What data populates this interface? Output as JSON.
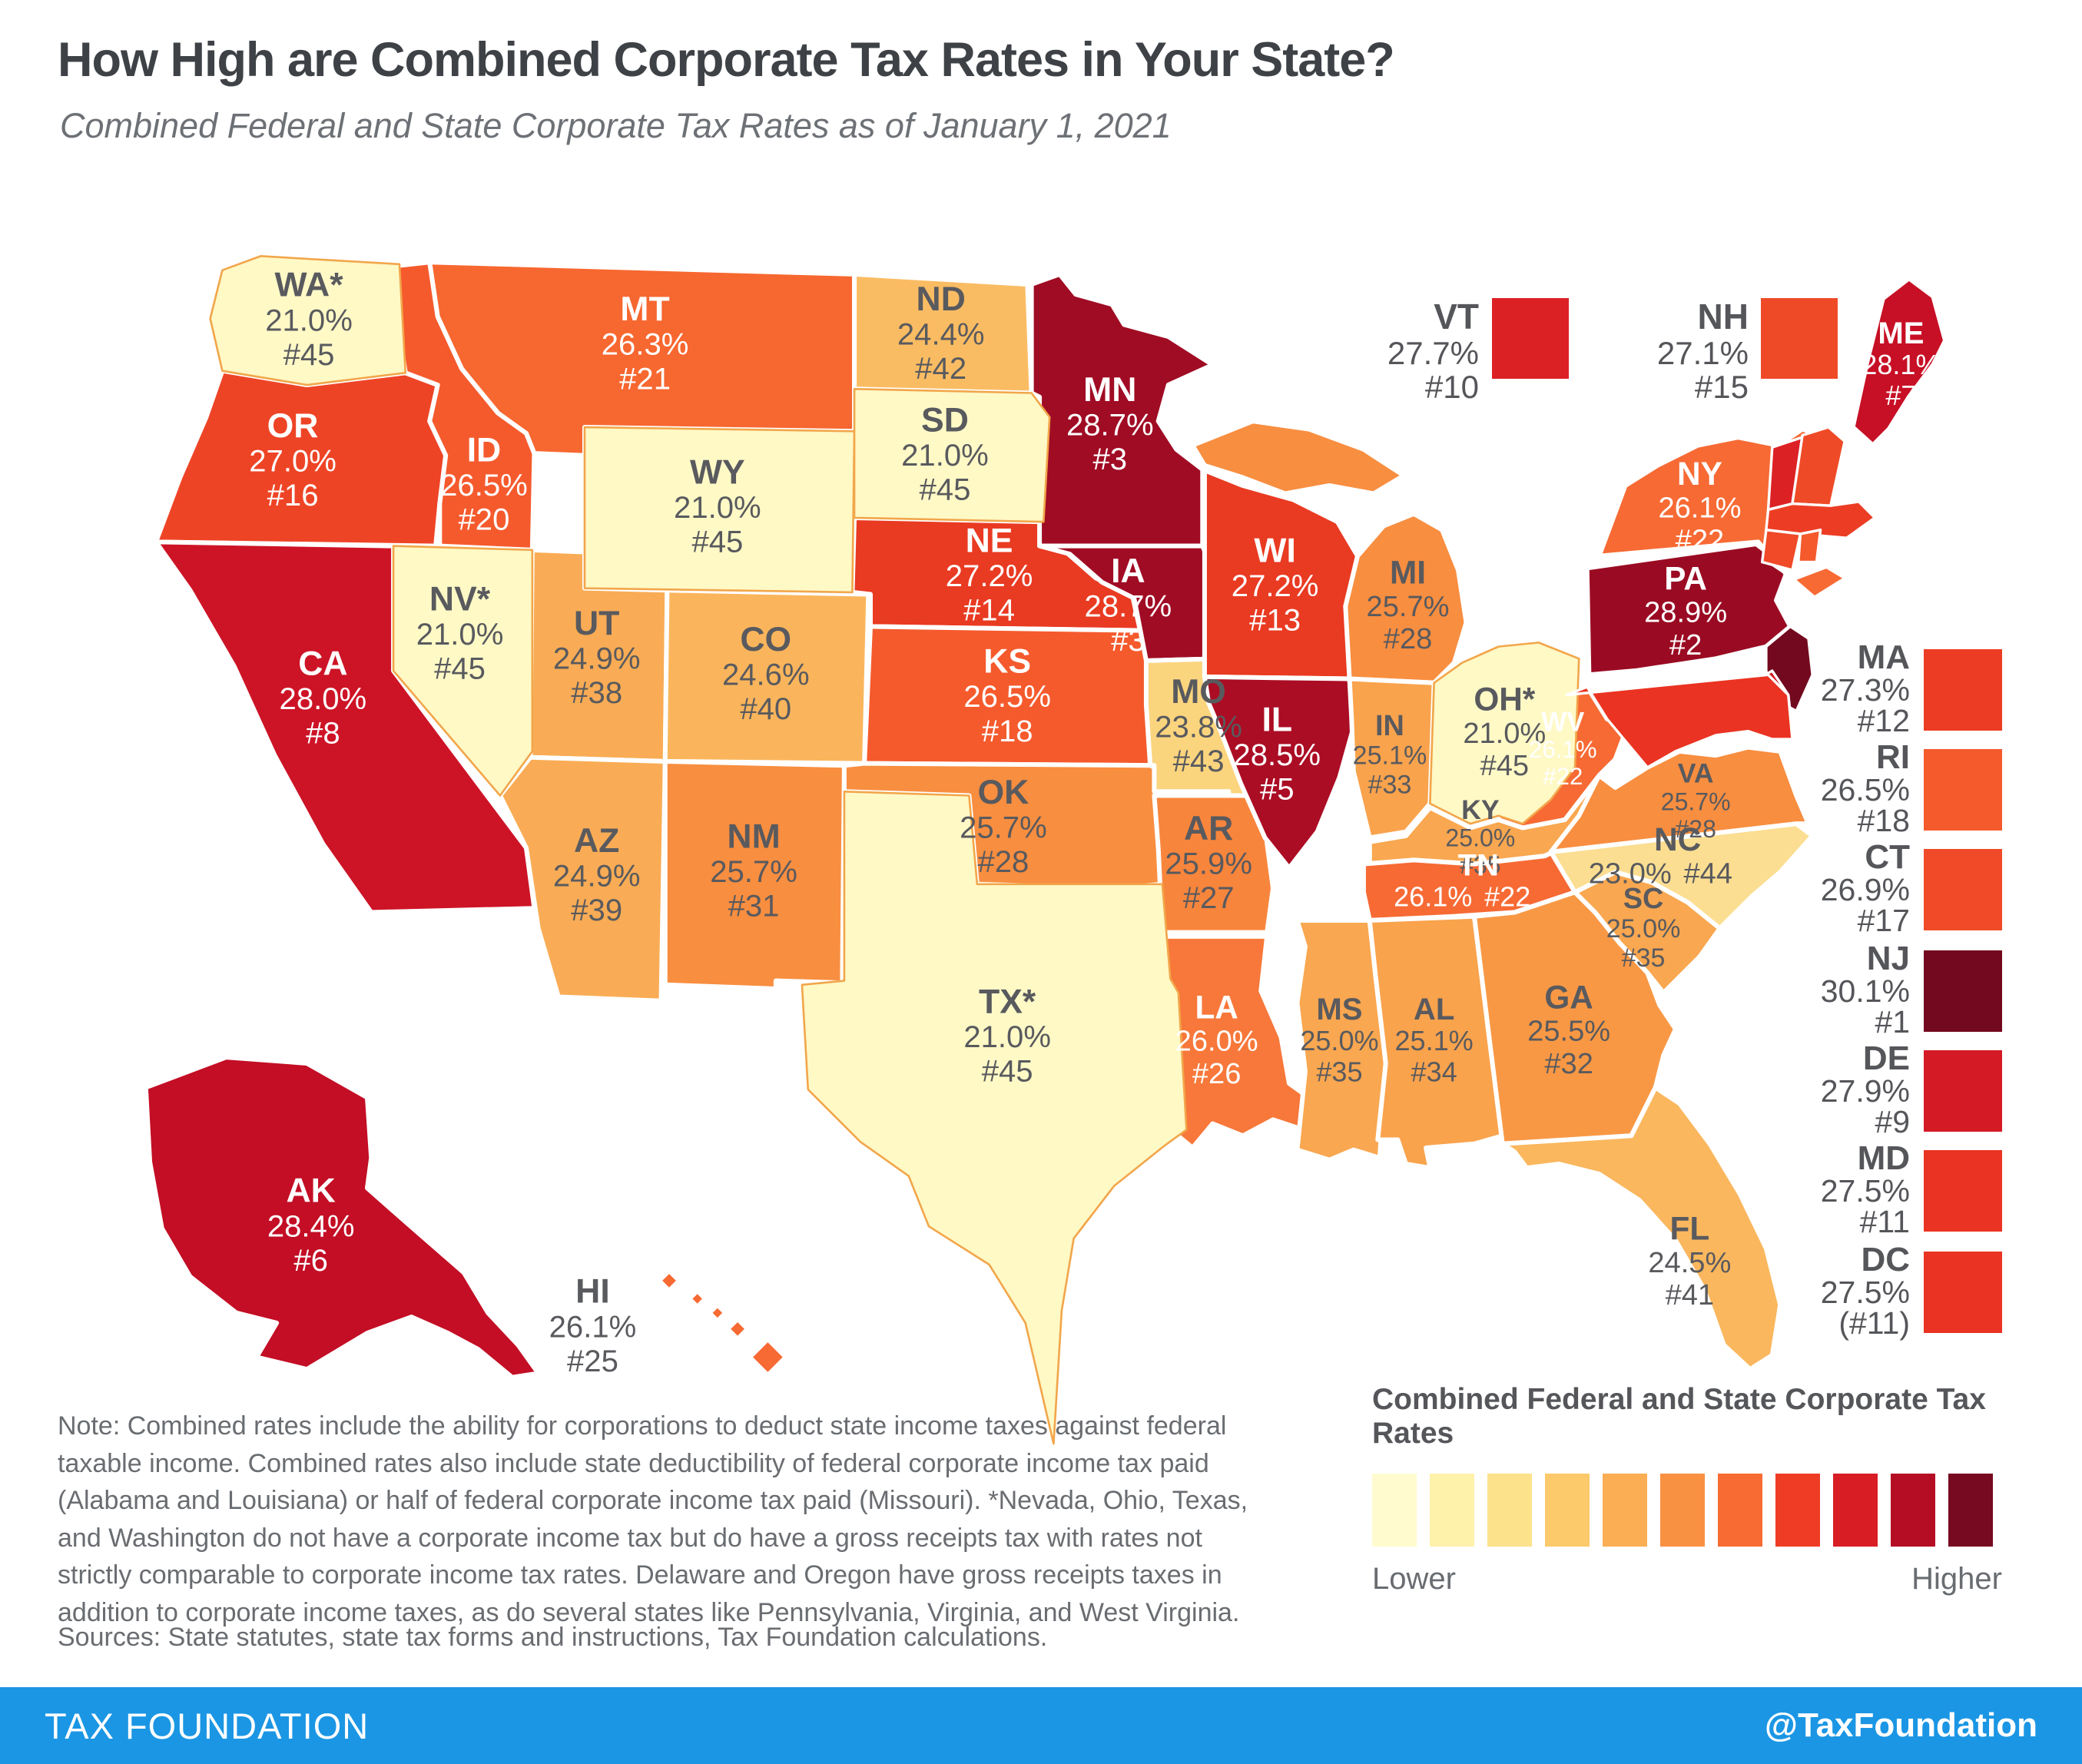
{
  "title": "How High are Combined Corporate Tax Rates in Your State?",
  "subtitle": "Combined Federal and State Corporate Tax Rates as of January 1, 2021",
  "map": {
    "states": [
      {
        "abbr": "WA",
        "label": "WA*",
        "rate": "21.0%",
        "rank": "#45",
        "color": "#FFF9C6"
      },
      {
        "abbr": "OR",
        "label": "OR",
        "rate": "27.0%",
        "rank": "#16",
        "color": "#EE4426"
      },
      {
        "abbr": "CA",
        "label": "CA",
        "rate": "28.0%",
        "rank": "#8",
        "color": "#CD1426"
      },
      {
        "abbr": "NV",
        "label": "NV*",
        "rate": "21.0%",
        "rank": "#45",
        "color": "#FFF9C6"
      },
      {
        "abbr": "ID",
        "label": "ID",
        "rate": "26.5%",
        "rank": "#20",
        "color": "#F55A2D"
      },
      {
        "abbr": "MT",
        "label": "MT",
        "rate": "26.3%",
        "rank": "#21",
        "color": "#F76730"
      },
      {
        "abbr": "WY",
        "label": "WY",
        "rate": "21.0%",
        "rank": "#45",
        "color": "#FFF9C6"
      },
      {
        "abbr": "UT",
        "label": "UT",
        "rate": "24.9%",
        "rank": "#38",
        "color": "#F9AC55"
      },
      {
        "abbr": "CO",
        "label": "CO",
        "rate": "24.6%",
        "rank": "#40",
        "color": "#FAB55C"
      },
      {
        "abbr": "AZ",
        "label": "AZ",
        "rate": "24.9%",
        "rank": "#39",
        "color": "#F9AC55"
      },
      {
        "abbr": "NM",
        "label": "NM",
        "rate": "25.7%",
        "rank": "#31",
        "color": "#F88E40"
      },
      {
        "abbr": "ND",
        "label": "ND",
        "rate": "24.4%",
        "rank": "#42",
        "color": "#FABC63"
      },
      {
        "abbr": "SD",
        "label": "SD",
        "rate": "21.0%",
        "rank": "#45",
        "color": "#FFF9C6"
      },
      {
        "abbr": "NE",
        "label": "NE",
        "rate": "27.2%",
        "rank": "#14",
        "color": "#E93A22"
      },
      {
        "abbr": "KS",
        "label": "KS",
        "rate": "26.5%",
        "rank": "#18",
        "color": "#F55A2D"
      },
      {
        "abbr": "OK",
        "label": "OK",
        "rate": "25.7%",
        "rank": "#28",
        "color": "#F88E40"
      },
      {
        "abbr": "TX",
        "label": "TX*",
        "rate": "21.0%",
        "rank": "#45",
        "color": "#FFF9C6"
      },
      {
        "abbr": "MN",
        "label": "MN",
        "rate": "28.7%",
        "rank": "#3",
        "color": "#A00C24"
      },
      {
        "abbr": "IA",
        "label": "IA",
        "rate": "28.7%",
        "rank": "#3",
        "color": "#A00C24"
      },
      {
        "abbr": "MO",
        "label": "MO",
        "rate": "23.8%",
        "rank": "#43",
        "color": "#FBD47E"
      },
      {
        "abbr": "AR",
        "label": "AR",
        "rate": "25.9%",
        "rank": "#27",
        "color": "#F8853C"
      },
      {
        "abbr": "LA",
        "label": "LA",
        "rate": "26.0%",
        "rank": "#26",
        "color": "#F7783A"
      },
      {
        "abbr": "WI",
        "label": "WI",
        "rate": "27.2%",
        "rank": "#13",
        "color": "#E93A22"
      },
      {
        "abbr": "IL",
        "label": "IL",
        "rate": "28.5%",
        "rank": "#5",
        "color": "#AB0D24"
      },
      {
        "abbr": "MI",
        "label": "MI",
        "rate": "25.7%",
        "rank": "#28",
        "color": "#F88E40"
      },
      {
        "abbr": "IN",
        "label": "IN",
        "rate": "25.1%",
        "rank": "#33",
        "color": "#F9A34D"
      },
      {
        "abbr": "OH",
        "label": "OH*",
        "rate": "21.0%",
        "rank": "#45",
        "color": "#FFF9C6"
      },
      {
        "abbr": "KY",
        "label": "KY",
        "rate": "25.0%",
        "rank": "#35",
        "color": "#F9A750"
      },
      {
        "abbr": "TN",
        "label": "TN",
        "rate": "26.1%",
        "rank": "#22",
        "color": "#F76A34"
      },
      {
        "abbr": "MS",
        "label": "MS",
        "rate": "25.0%",
        "rank": "#35",
        "color": "#F9A750"
      },
      {
        "abbr": "AL",
        "label": "AL",
        "rate": "25.1%",
        "rank": "#34",
        "color": "#F9A34D"
      },
      {
        "abbr": "GA",
        "label": "GA",
        "rate": "25.5%",
        "rank": "#32",
        "color": "#F89845"
      },
      {
        "abbr": "FL",
        "label": "FL",
        "rate": "24.5%",
        "rank": "#41",
        "color": "#FAB75E"
      },
      {
        "abbr": "SC",
        "label": "SC",
        "rate": "25.0%",
        "rank": "#35",
        "color": "#F9A750"
      },
      {
        "abbr": "NC",
        "label": "NC",
        "rate": "23.0%",
        "rank": "#44",
        "color": "#FCDE92"
      },
      {
        "abbr": "VA",
        "label": "VA",
        "rate": "25.7%",
        "rank": "#28",
        "color": "#F88E40"
      },
      {
        "abbr": "WV",
        "label": "WV",
        "rate": "26.1%",
        "rank": "#22",
        "color": "#F76A34"
      },
      {
        "abbr": "PA",
        "label": "PA",
        "rate": "28.9%",
        "rank": "#2",
        "color": "#9A0B23"
      },
      {
        "abbr": "NY",
        "label": "NY",
        "rate": "26.1%",
        "rank": "#22",
        "color": "#F76A34"
      },
      {
        "abbr": "ME",
        "label": "ME",
        "rate": "28.1%",
        "rank": "#7",
        "color": "#C71025"
      },
      {
        "abbr": "VT",
        "label": "VT",
        "rate": "27.7%",
        "rank": "#10",
        "color": "#DC2125"
      },
      {
        "abbr": "NH",
        "label": "NH",
        "rate": "27.1%",
        "rank": "#15",
        "color": "#EF4A27"
      },
      {
        "abbr": "MA",
        "label": "MA",
        "rate": "27.3%",
        "rank": "#12",
        "color": "#EC3D24"
      },
      {
        "abbr": "RI",
        "label": "RI",
        "rate": "26.5%",
        "rank": "#18",
        "color": "#F55A2D"
      },
      {
        "abbr": "CT",
        "label": "CT",
        "rate": "26.9%",
        "rank": "#17",
        "color": "#F04A28"
      },
      {
        "abbr": "NJ",
        "label": "NJ",
        "rate": "30.1%",
        "rank": "#1",
        "color": "#73091E"
      },
      {
        "abbr": "DE",
        "label": "DE",
        "rate": "27.9%",
        "rank": "#9",
        "color": "#D41A25"
      },
      {
        "abbr": "MD",
        "label": "MD",
        "rate": "27.5%",
        "rank": "#11",
        "color": "#EA3322"
      },
      {
        "abbr": "DC",
        "label": "DC",
        "rate": "27.5%",
        "rank": "(#11)",
        "color": "#EA3322"
      },
      {
        "abbr": "AK",
        "label": "AK",
        "rate": "28.4%",
        "rank": "#6",
        "color": "#C30E25"
      },
      {
        "abbr": "HI",
        "label": "HI",
        "rate": "26.1%",
        "rank": "#25",
        "color": "#F76A34"
      }
    ],
    "top_callouts": [
      "VT",
      "NH"
    ],
    "right_callouts": [
      "MA",
      "RI",
      "CT",
      "NJ",
      "DE",
      "MD",
      "DC"
    ]
  },
  "note": "Note: Combined rates include the ability for corporations to deduct state income taxes against federal taxable income. Combined rates also include state deductibility of federal corporate income tax paid (Alabama and Louisiana) or half of federal corporate income tax paid (Missouri). *Nevada, Ohio, Texas, and Washington do not have a corporate income tax but do have a gross receipts tax with rates not strictly comparable to corporate income tax rates. Delaware and Oregon have gross receipts taxes in addition to corporate income taxes, as do several states like Pennsylvania, Virginia, and West Virginia.",
  "sources": "Sources: State statutes, state tax forms and instructions, Tax Foundation calculations.",
  "legend": {
    "title": "Combined Federal and State Corporate Tax Rates",
    "low_label": "Lower",
    "high_label": "Higher",
    "colors": [
      "#FFFBCE",
      "#FEF2AB",
      "#FDE28C",
      "#FCC96B",
      "#FBAE54",
      "#F99143",
      "#F86C33",
      "#EF3D25",
      "#D81D25",
      "#B50E24",
      "#770A20"
    ]
  },
  "footer": {
    "brand": "TAX FOUNDATION",
    "handle": "@TaxFoundation",
    "bg": "#1B96E4"
  }
}
